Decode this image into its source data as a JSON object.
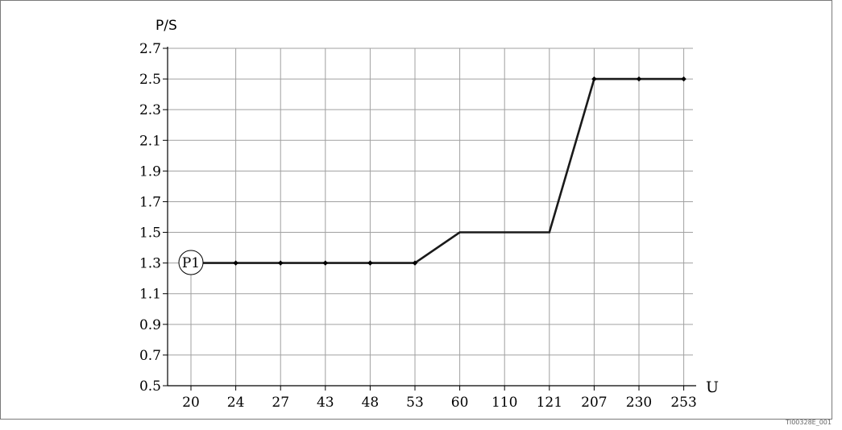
{
  "chart_data": {
    "type": "line",
    "title": "",
    "ylabel": "P/S",
    "xlabel": "U",
    "categories": [
      "20",
      "24",
      "27",
      "43",
      "48",
      "53",
      "60",
      "110",
      "121",
      "207",
      "230",
      "253"
    ],
    "series": [
      {
        "values": [
          1.3,
          1.3,
          1.3,
          1.3,
          1.3,
          1.3,
          1.5,
          1.5,
          1.5,
          2.5,
          2.5,
          2.5
        ],
        "markers": [
          true,
          true,
          true,
          true,
          true,
          true,
          false,
          false,
          false,
          true,
          true,
          true
        ]
      }
    ],
    "yticks": [
      "0.5",
      "0.7",
      "0.9",
      "1.1",
      "1.3",
      "1.5",
      "1.7",
      "1.9",
      "2.1",
      "2.3",
      "2.5",
      "2.7"
    ],
    "ylim": [
      0.5,
      2.7
    ],
    "grid": true,
    "line_color": "#1a1a1a",
    "grid_color": "#a0a0a0"
  },
  "annotation": {
    "label": "P1"
  },
  "figure_id": "TI00328E_001"
}
